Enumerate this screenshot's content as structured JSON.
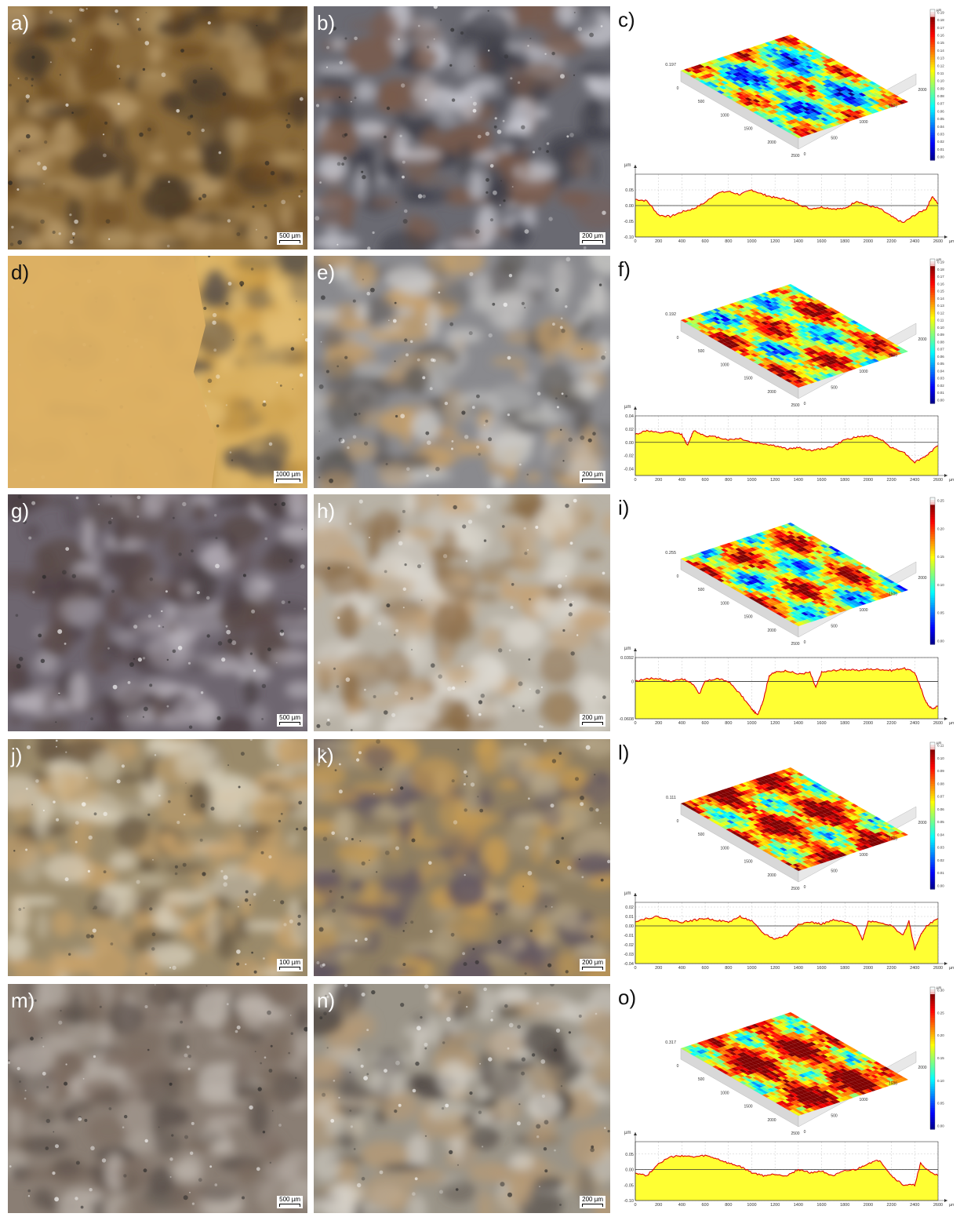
{
  "panels": [
    {
      "label": "a)",
      "scale": "500 µm",
      "tone": [
        "#8a6a3a",
        "#6b4a22",
        "#b79a6a",
        "#4a3a2a"
      ]
    },
    {
      "label": "b)",
      "scale": "200 µm",
      "tone": [
        "#6a6a72",
        "#3a3a44",
        "#c8c8d0",
        "#7a5a4a"
      ]
    },
    {
      "label": "c)"
    },
    {
      "label": "d)",
      "scale": "1000 µm",
      "tone": [
        "#d9b060",
        "#c99a45",
        "#e2bd72",
        "#5a5048"
      ]
    },
    {
      "label": "e)",
      "scale": "200 µm",
      "tone": [
        "#8a8a8e",
        "#5e5a58",
        "#c9c8c6",
        "#c7a06a"
      ]
    },
    {
      "label": "f)"
    },
    {
      "label": "g)",
      "scale": "500 µm",
      "tone": [
        "#6e6670",
        "#4a3e42",
        "#b8b2ba",
        "#5a4a48"
      ]
    },
    {
      "label": "h)",
      "scale": "200 µm",
      "tone": [
        "#b8b2a6",
        "#8a6a44",
        "#dcd8d0",
        "#c4a278"
      ]
    },
    {
      "label": "i)"
    },
    {
      "label": "j)",
      "scale": "100 µm",
      "tone": [
        "#9a8a6a",
        "#6a5a44",
        "#d8d0bc",
        "#c9a26a"
      ]
    },
    {
      "label": "k)",
      "scale": "200 µm",
      "tone": [
        "#8e7e62",
        "#5a5060",
        "#b9a98a",
        "#c89c52"
      ]
    },
    {
      "label": "l)"
    },
    {
      "label": "m)",
      "scale": "500 µm",
      "tone": [
        "#8a7e74",
        "#5a504a",
        "#bcb4ac",
        "#7a6a5e"
      ]
    },
    {
      "label": "n)",
      "scale": "200 µm",
      "tone": [
        "#9a9488",
        "#4e4642",
        "#d8d4cc",
        "#b59a76"
      ]
    },
    {
      "label": "o)"
    }
  ],
  "chart_data": [
    {
      "panel": "c)",
      "type": "area",
      "title": "",
      "ylabel": "µm",
      "xunit": "µm",
      "surface": {
        "zmax_label": "0.197",
        "colorbar_unit": "µm",
        "colorbar_ticks": [
          "0.19",
          "0.18",
          "0.17",
          "0.16",
          "0.15",
          "0.14",
          "0.13",
          "0.12",
          "0.11",
          "0.10",
          "0.09",
          "0.08",
          "0.07",
          "0.06",
          "0.05",
          "0.04",
          "0.03",
          "0.02",
          "0.01",
          "0.00"
        ],
        "colorbar_max": 0.19,
        "colorbar_min": 0.0,
        "axis_ticks_a": [
          "0",
          "500",
          "1000",
          "1500",
          "2000",
          "2500"
        ],
        "axis_ticks_b": [
          "0",
          "500",
          "1000",
          "1500",
          "2000"
        ],
        "dominant": "mixed"
      },
      "xlim": [
        0,
        2600
      ],
      "ylim": [
        -0.1,
        0.1
      ],
      "yticks": [
        0.05,
        0.0,
        -0.05,
        -0.1
      ],
      "ytick_labels": [
        "0.05",
        "0.00",
        "-0.05",
        "-0.10"
      ],
      "xticks": [
        0,
        200,
        400,
        600,
        800,
        1000,
        1200,
        1400,
        1600,
        1800,
        2000,
        2200,
        2400,
        2600
      ],
      "xtick_labels": [
        "0",
        "200",
        "400",
        "600",
        "800",
        "1000",
        "1200",
        "1400",
        "1600",
        "1800",
        "2000",
        "2200",
        "2400",
        "2600"
      ],
      "x": [
        0,
        100,
        200,
        300,
        400,
        500,
        600,
        700,
        800,
        900,
        1000,
        1100,
        1200,
        1300,
        1400,
        1500,
        1600,
        1700,
        1800,
        1900,
        2000,
        2100,
        2200,
        2300,
        2400,
        2500,
        2550,
        2600
      ],
      "y": [
        0.02,
        0.015,
        -0.03,
        -0.035,
        -0.02,
        -0.01,
        0.01,
        0.04,
        0.045,
        0.035,
        0.05,
        0.035,
        0.025,
        0.02,
        0.005,
        -0.01,
        -0.005,
        -0.01,
        -0.01,
        0.015,
        0.0,
        -0.01,
        -0.035,
        -0.055,
        -0.03,
        -0.01,
        0.03,
        0.005
      ]
    },
    {
      "panel": "f)",
      "type": "area",
      "title": "",
      "ylabel": "µm",
      "xunit": "µm",
      "surface": {
        "zmax_label": "0.192",
        "colorbar_unit": "µm",
        "colorbar_ticks": [
          "0.19",
          "0.18",
          "0.17",
          "0.16",
          "0.15",
          "0.14",
          "0.13",
          "0.12",
          "0.11",
          "0.10",
          "0.09",
          "0.08",
          "0.07",
          "0.06",
          "0.05",
          "0.04",
          "0.03",
          "0.02",
          "0.01",
          "0.00"
        ],
        "colorbar_max": 0.19,
        "colorbar_min": 0.0,
        "axis_ticks_a": [
          "0",
          "500",
          "1000",
          "1500",
          "2000",
          "2500"
        ],
        "axis_ticks_b": [
          "0",
          "500",
          "1000",
          "1500",
          "2000"
        ],
        "dominant": "yellow"
      },
      "xlim": [
        0,
        2600
      ],
      "ylim": [
        -0.05,
        0.04
      ],
      "yticks": [
        0.04,
        0.02,
        0.0,
        -0.02,
        -0.04
      ],
      "ytick_labels": [
        "0.04",
        "0.02",
        "0.00",
        "-0.02",
        "-0.04"
      ],
      "xticks": [
        0,
        200,
        400,
        600,
        800,
        1000,
        1200,
        1400,
        1600,
        1800,
        2000,
        2200,
        2400,
        2600
      ],
      "xtick_labels": [
        "0",
        "200",
        "400",
        "600",
        "800",
        "1000",
        "1200",
        "1400",
        "1600",
        "1800",
        "2000",
        "2200",
        "2400",
        "2600"
      ],
      "x": [
        0,
        100,
        200,
        300,
        400,
        450,
        500,
        600,
        700,
        800,
        900,
        1000,
        1100,
        1200,
        1300,
        1400,
        1500,
        1600,
        1700,
        1800,
        1900,
        2000,
        2100,
        2200,
        2300,
        2400,
        2500,
        2600
      ],
      "y": [
        0.012,
        0.018,
        0.014,
        0.016,
        0.012,
        -0.005,
        0.018,
        0.01,
        0.008,
        0.004,
        0.006,
        0.0,
        -0.002,
        -0.005,
        -0.01,
        -0.008,
        -0.012,
        -0.01,
        -0.006,
        0.004,
        0.008,
        0.01,
        0.006,
        -0.008,
        -0.014,
        -0.03,
        -0.02,
        -0.005
      ]
    },
    {
      "panel": "i)",
      "type": "area",
      "title": "",
      "ylabel": "µm",
      "xunit": "µm",
      "surface": {
        "zmax_label": "0.255",
        "colorbar_unit": "",
        "colorbar_ticks": [
          "0.25",
          "0.20",
          "0.15",
          "0.10",
          "0.05",
          "0.00"
        ],
        "colorbar_max": 0.25,
        "colorbar_min": 0.0,
        "axis_ticks_a": [
          "0",
          "500",
          "1000",
          "1500",
          "2000",
          "2500"
        ],
        "axis_ticks_b": [
          "0",
          "500",
          "1000",
          "1500",
          "2000"
        ],
        "dominant": "yellow"
      },
      "xlim": [
        0,
        2600
      ],
      "ylim": [
        -0.0608,
        0.0392
      ],
      "yticks": [
        0.0392,
        0,
        -0.0608
      ],
      "ytick_labels": [
        "0.0392",
        "0",
        "-0.0608"
      ],
      "xticks": [
        0,
        200,
        400,
        600,
        800,
        1000,
        1200,
        1400,
        1600,
        1800,
        2000,
        2200,
        2400,
        2600
      ],
      "xtick_labels": [
        "0",
        "200",
        "400",
        "600",
        "800",
        "1000",
        "1200",
        "1400",
        "1600",
        "1800",
        "2000",
        "2200",
        "2400",
        "2600"
      ],
      "x": [
        0,
        100,
        200,
        300,
        400,
        500,
        550,
        600,
        700,
        800,
        900,
        1000,
        1050,
        1100,
        1150,
        1200,
        1300,
        1400,
        1500,
        1550,
        1600,
        1700,
        1800,
        1900,
        2000,
        2100,
        2200,
        2300,
        2400,
        2450,
        2500,
        2550,
        2600
      ],
      "y": [
        0.0,
        0.005,
        0.005,
        0.0,
        0.005,
        -0.005,
        -0.02,
        0.0,
        0.005,
        0.0,
        -0.02,
        -0.045,
        -0.055,
        -0.03,
        0.01,
        0.015,
        0.018,
        0.012,
        0.015,
        -0.01,
        0.015,
        0.018,
        0.02,
        0.018,
        0.02,
        0.02,
        0.018,
        0.022,
        0.015,
        -0.01,
        -0.035,
        -0.045,
        -0.04
      ]
    },
    {
      "panel": "l)",
      "type": "area",
      "title": "",
      "ylabel": "µm",
      "xunit": "µm",
      "surface": {
        "zmax_label": "0.111",
        "colorbar_unit": "µm",
        "colorbar_ticks": [
          "0.11",
          "0.10",
          "0.09",
          "0.08",
          "0.07",
          "0.06",
          "0.05",
          "0.04",
          "0.03",
          "0.02",
          "0.01",
          "0.00"
        ],
        "colorbar_max": 0.11,
        "colorbar_min": 0.0,
        "axis_ticks_a": [
          "0",
          "500",
          "1000",
          "1500",
          "2000",
          "2500"
        ],
        "axis_ticks_b": [
          "0",
          "500",
          "1000",
          "1500",
          "2000"
        ],
        "dominant": "red"
      },
      "xlim": [
        0,
        2600
      ],
      "ylim": [
        -0.04,
        0.025
      ],
      "yticks": [
        0.02,
        0.01,
        0.0,
        -0.01,
        -0.02,
        -0.03,
        -0.04
      ],
      "ytick_labels": [
        "0.02",
        "0.01",
        "0.00",
        "-0.01",
        "-0.02",
        "-0.03",
        "-0.04"
      ],
      "xticks": [
        0,
        200,
        400,
        600,
        800,
        1000,
        1200,
        1400,
        1600,
        1800,
        2000,
        2200,
        2400,
        2600
      ],
      "xtick_labels": [
        "0",
        "200",
        "400",
        "600",
        "800",
        "1000",
        "1200",
        "1400",
        "1600",
        "1800",
        "2000",
        "2200",
        "2400",
        "2600"
      ],
      "x": [
        0,
        100,
        200,
        300,
        400,
        500,
        600,
        700,
        800,
        900,
        1000,
        1100,
        1200,
        1300,
        1400,
        1500,
        1600,
        1700,
        1800,
        1900,
        1950,
        2000,
        2100,
        2200,
        2300,
        2350,
        2400,
        2450,
        2500,
        2600
      ],
      "y": [
        0.005,
        0.008,
        0.01,
        0.006,
        0.004,
        0.006,
        0.008,
        0.006,
        0.004,
        0.01,
        0.005,
        -0.008,
        -0.014,
        -0.01,
        0.002,
        0.004,
        0.002,
        0.006,
        0.004,
        0.0,
        -0.015,
        0.005,
        0.004,
        0.0,
        -0.01,
        0.005,
        -0.025,
        -0.01,
        0.0,
        0.008
      ]
    },
    {
      "panel": "o)",
      "type": "area",
      "title": "",
      "ylabel": "µm",
      "xunit": "µm",
      "surface": {
        "zmax_label": "0.317",
        "colorbar_unit": "µm",
        "colorbar_ticks": [
          "0.30",
          "0.25",
          "0.20",
          "0.15",
          "0.10",
          "0.05",
          "0.00"
        ],
        "colorbar_max": 0.3,
        "colorbar_min": 0.0,
        "axis_ticks_a": [
          "0",
          "500",
          "1000",
          "1500",
          "2000",
          "2500"
        ],
        "axis_ticks_b": [
          "0",
          "500",
          "1000",
          "1500",
          "2000"
        ],
        "dominant": "orange"
      },
      "xlim": [
        0,
        2600
      ],
      "ylim": [
        -0.1,
        0.09
      ],
      "yticks": [
        0.05,
        0.0,
        -0.05,
        -0.1
      ],
      "ytick_labels": [
        "0.05",
        "0.00",
        "-0.05",
        "-0.10"
      ],
      "xticks": [
        0,
        200,
        400,
        600,
        800,
        1000,
        1200,
        1400,
        1600,
        1800,
        2000,
        2200,
        2400,
        2600
      ],
      "xtick_labels": [
        "0",
        "200",
        "400",
        "600",
        "800",
        "1000",
        "1200",
        "1400",
        "1600",
        "1800",
        "2000",
        "2200",
        "2400",
        "2600"
      ],
      "x": [
        0,
        100,
        200,
        300,
        400,
        500,
        600,
        700,
        800,
        900,
        1000,
        1100,
        1200,
        1300,
        1400,
        1500,
        1600,
        1700,
        1800,
        1900,
        2000,
        2100,
        2200,
        2300,
        2400,
        2450,
        2500,
        2600
      ],
      "y": [
        -0.01,
        -0.02,
        0.02,
        0.04,
        0.045,
        0.04,
        0.045,
        0.035,
        0.02,
        0.01,
        -0.01,
        -0.02,
        -0.015,
        -0.02,
        0.0,
        -0.01,
        -0.005,
        -0.02,
        -0.005,
        0.0,
        0.02,
        0.03,
        -0.02,
        -0.05,
        -0.05,
        0.02,
        0.0,
        -0.02
      ]
    }
  ]
}
